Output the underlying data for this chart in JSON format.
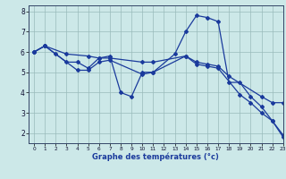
{
  "xlabel": "Graphe des températures (°c)",
  "bg_color": "#cce8e8",
  "line_color": "#1a3a9c",
  "grid_color": "#99bbbb",
  "xlim": [
    -0.5,
    23
  ],
  "ylim": [
    1.5,
    8.3
  ],
  "xticks": [
    0,
    1,
    2,
    3,
    4,
    5,
    6,
    7,
    8,
    9,
    10,
    11,
    12,
    13,
    14,
    15,
    16,
    17,
    18,
    19,
    20,
    21,
    22,
    23
  ],
  "yticks": [
    2,
    3,
    4,
    5,
    6,
    7,
    8
  ],
  "line1_x": [
    0,
    1,
    2,
    3,
    4,
    5,
    6,
    7,
    8,
    9,
    10,
    11,
    13,
    14,
    15,
    16,
    17,
    18,
    19,
    20,
    21,
    22,
    23
  ],
  "line1_y": [
    6.0,
    6.3,
    5.9,
    5.5,
    5.5,
    5.2,
    5.7,
    5.8,
    4.0,
    3.8,
    5.0,
    5.0,
    5.9,
    7.0,
    7.8,
    7.7,
    7.5,
    4.5,
    4.5,
    3.8,
    3.3,
    2.6,
    1.8
  ],
  "line2_x": [
    0,
    1,
    3,
    5,
    6,
    7,
    10,
    11,
    14,
    15,
    16,
    17,
    18,
    21,
    22,
    23
  ],
  "line2_y": [
    6.0,
    6.3,
    5.9,
    5.8,
    5.7,
    5.7,
    5.5,
    5.5,
    5.8,
    5.5,
    5.4,
    5.3,
    4.8,
    3.8,
    3.5,
    3.5
  ],
  "line3_x": [
    0,
    1,
    4,
    5,
    6,
    7,
    10,
    11,
    14,
    15,
    16,
    17,
    19,
    20,
    21,
    22,
    23
  ],
  "line3_y": [
    6.0,
    6.3,
    5.1,
    5.1,
    5.5,
    5.6,
    4.9,
    5.0,
    5.8,
    5.4,
    5.3,
    5.2,
    3.9,
    3.5,
    3.0,
    2.6,
    1.9
  ]
}
